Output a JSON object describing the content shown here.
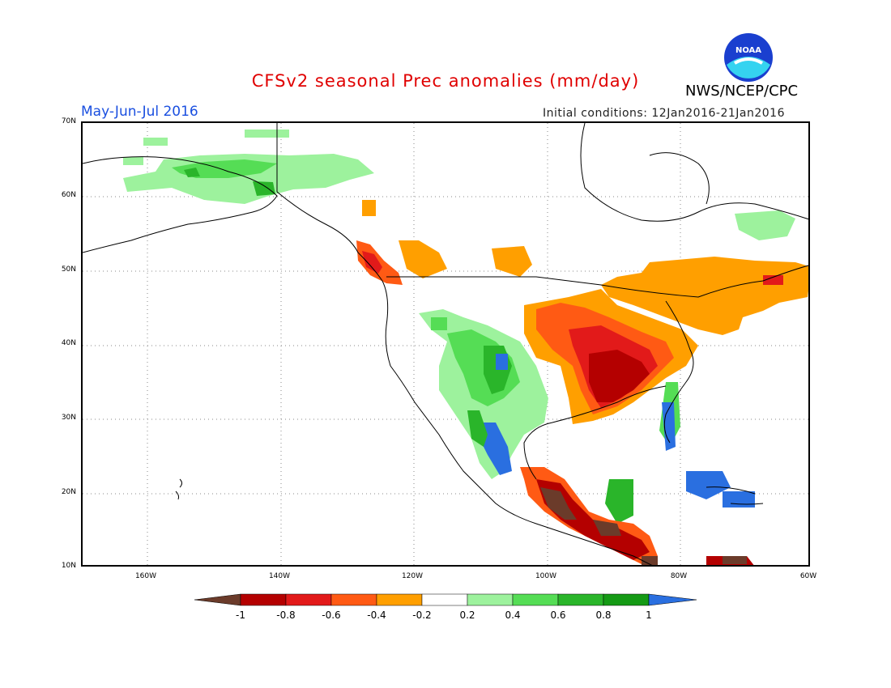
{
  "header": {
    "title": "CFSv2 seasonal Prec anomalies (mm/day)",
    "agency": "NWS/NCEP/CPC",
    "period": "May-Jun-Jul 2016",
    "initial_conditions": "Initial conditions: 12Jan2016-21Jan2016",
    "logo_text": "NOAA"
  },
  "axes": {
    "lat_labels": [
      "70N",
      "60N",
      "50N",
      "40N",
      "30N",
      "20N",
      "10N"
    ],
    "lon_labels": [
      "160W",
      "140W",
      "120W",
      "100W",
      "80W",
      "60W"
    ]
  },
  "colorbar": {
    "labels": [
      "-1",
      "-0.8",
      "-0.6",
      "-0.4",
      "-0.2",
      "0.2",
      "0.4",
      "0.6",
      "0.8",
      "1"
    ],
    "colors": [
      "#6b3b2a",
      "#b40000",
      "#e21a1a",
      "#ff5a14",
      "#ff9f00",
      "#ffffff",
      "#9df29d",
      "#55dd55",
      "#2ab52a",
      "#159a15",
      "#2a6fe0"
    ]
  },
  "anomaly_regions": [
    {
      "region": "Alaska / Yukon",
      "category": "0.2 to 0.6 (wet)"
    },
    {
      "region": "Pacific Northwest coast",
      "category": "-0.6 to -0.8 (dry)"
    },
    {
      "region": "Central and Eastern US",
      "category": "-0.4 to below -0.8 (dry)"
    },
    {
      "region": "Ohio / Tennessee Valley",
      "category": "-0.8 to -1 (dry)"
    },
    {
      "region": "Southwest US / NW Mexico",
      "category": "0.4 to above 1 (wet)"
    },
    {
      "region": "Florida / Southeast coast",
      "category": "0.4 to above 1 (wet)"
    },
    {
      "region": "Central Mexico / Central America",
      "category": "-0.6 to below -1 (dry)"
    },
    {
      "region": "Eastern Canada / Northeast",
      "category": "-0.2 to -0.4 (dry)"
    },
    {
      "region": "Caribbean islands",
      "category": "above 1 (wet)"
    }
  ]
}
